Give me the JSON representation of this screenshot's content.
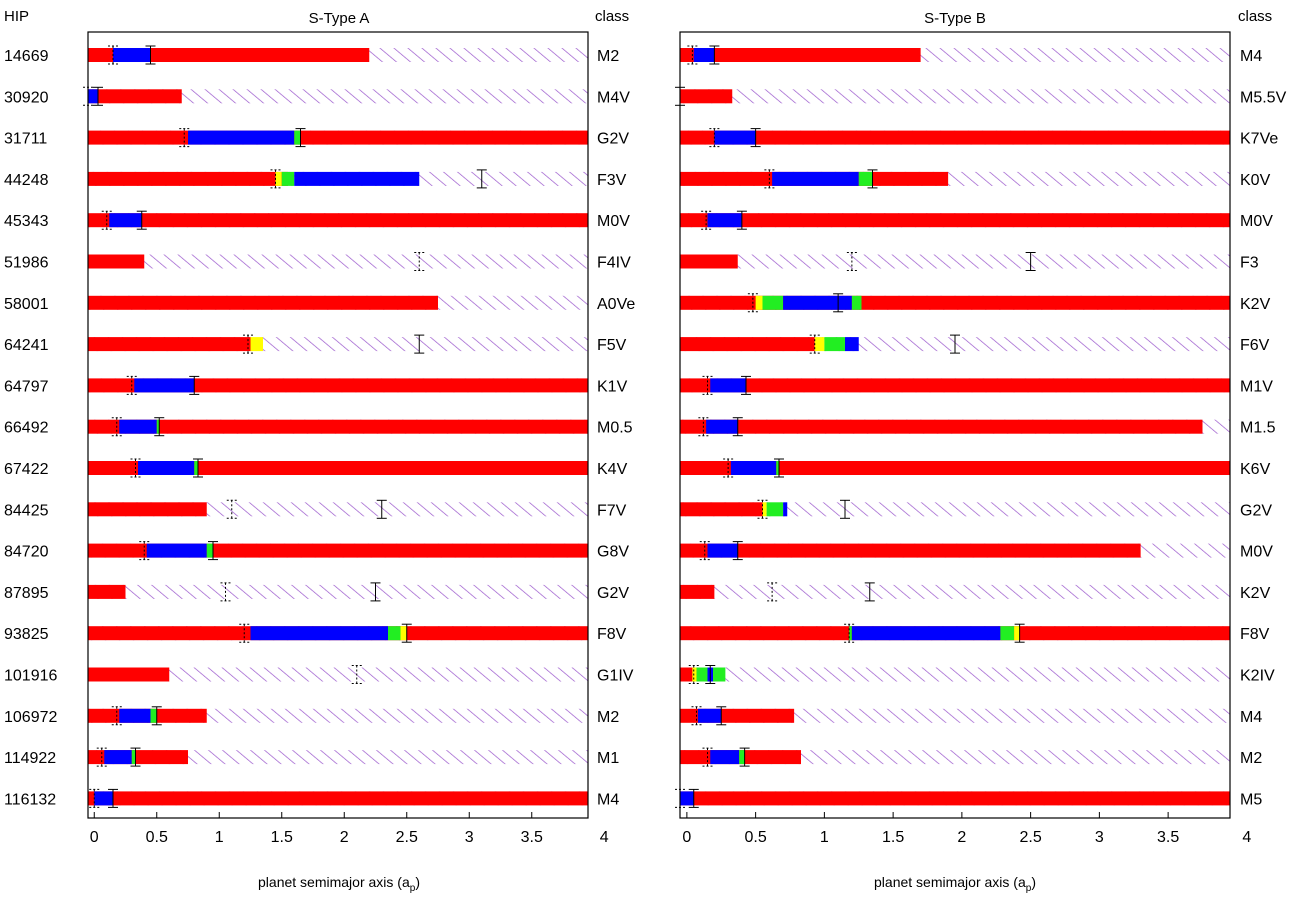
{
  "labels": {
    "hip_header": "HIP",
    "class_header": "class",
    "xlabel_main": "planet semimajor axis (a",
    "xlabel_sub": "p",
    "xlabel_close": ")"
  },
  "colors": {
    "red": "#ff0000",
    "blue": "#0000ff",
    "green": "#22ee22",
    "yellow": "#ffff00",
    "hatch": "#9955cc",
    "axis": "#000000",
    "panel_border": "#440066"
  },
  "chart_data": [
    {
      "type": "bar",
      "title": "S-Type A",
      "xlabel": "planet semimajor axis (ap)",
      "xlim": [
        -0.05,
        3.95
      ],
      "xticks": [
        0,
        0.5,
        1,
        1.5,
        2,
        2.5,
        3,
        3.5,
        4
      ],
      "xtick_labels": [
        "0",
        "0.5",
        "1",
        "1.5",
        "2",
        "2.5",
        "3",
        "3.5",
        "4"
      ],
      "rows": [
        {
          "hip": "14669",
          "class": "M2",
          "red_end": 2.2,
          "segments": [
            {
              "color": "blue",
              "from": 0.15,
              "to": 0.45
            }
          ],
          "solid_markers": [
            0.45
          ],
          "dotted_markers": [
            0.15
          ]
        },
        {
          "hip": "30920",
          "class": "M4V",
          "red_end": 0.7,
          "segments": [
            {
              "color": "blue",
              "from": -0.05,
              "to": 0.03
            }
          ],
          "solid_markers": [
            0.03
          ],
          "dotted_markers": [
            -0.05
          ]
        },
        {
          "hip": "31711",
          "class": "G2V",
          "red_end": 3.95,
          "segments": [
            {
              "color": "blue",
              "from": 0.75,
              "to": 1.6
            },
            {
              "color": "green",
              "from": 1.6,
              "to": 1.65
            }
          ],
          "solid_markers": [
            1.65
          ],
          "dotted_markers": [
            0.72
          ]
        },
        {
          "hip": "44248",
          "class": "F3V",
          "red_end": 1.55,
          "segments": [
            {
              "color": "yellow",
              "from": 1.45,
              "to": 1.5
            },
            {
              "color": "green",
              "from": 1.5,
              "to": 1.6
            },
            {
              "color": "blue",
              "from": 1.6,
              "to": 2.6
            }
          ],
          "solid_markers": [
            3.1
          ],
          "dotted_markers": [
            1.45
          ]
        },
        {
          "hip": "45343",
          "class": "M0V",
          "red_end": 3.95,
          "segments": [
            {
              "color": "blue",
              "from": 0.12,
              "to": 0.38
            }
          ],
          "solid_markers": [
            0.38
          ],
          "dotted_markers": [
            0.1
          ]
        },
        {
          "hip": "51986",
          "class": "F4IV",
          "red_end": 0.4,
          "segments": [],
          "solid_markers": [],
          "dotted_markers": [
            2.6
          ]
        },
        {
          "hip": "58001",
          "class": "A0Ve",
          "red_end": 2.75,
          "segments": [],
          "solid_markers": [],
          "dotted_markers": []
        },
        {
          "hip": "64241",
          "class": "F5V",
          "red_end": 1.25,
          "segments": [
            {
              "color": "yellow",
              "from": 1.25,
              "to": 1.35
            }
          ],
          "solid_markers": [
            2.6
          ],
          "dotted_markers": [
            1.23
          ]
        },
        {
          "hip": "64797",
          "class": "K1V",
          "red_end": 3.95,
          "segments": [
            {
              "color": "blue",
              "from": 0.32,
              "to": 0.8
            }
          ],
          "solid_markers": [
            0.8
          ],
          "dotted_markers": [
            0.3
          ]
        },
        {
          "hip": "66492",
          "class": "M0.5",
          "red_end": 3.95,
          "segments": [
            {
              "color": "blue",
              "from": 0.2,
              "to": 0.5
            },
            {
              "color": "green",
              "from": 0.5,
              "to": 0.52
            }
          ],
          "solid_markers": [
            0.52
          ],
          "dotted_markers": [
            0.18
          ]
        },
        {
          "hip": "67422",
          "class": "K4V",
          "red_end": 3.95,
          "segments": [
            {
              "color": "blue",
              "from": 0.35,
              "to": 0.8
            },
            {
              "color": "green",
              "from": 0.8,
              "to": 0.83
            }
          ],
          "solid_markers": [
            0.83
          ],
          "dotted_markers": [
            0.33
          ]
        },
        {
          "hip": "84425",
          "class": "F7V",
          "red_end": 0.9,
          "segments": [],
          "solid_markers": [
            2.3
          ],
          "dotted_markers": [
            1.1
          ]
        },
        {
          "hip": "84720",
          "class": "G8V",
          "red_end": 3.95,
          "segments": [
            {
              "color": "blue",
              "from": 0.42,
              "to": 0.9
            },
            {
              "color": "green",
              "from": 0.9,
              "to": 0.95
            }
          ],
          "solid_markers": [
            0.95
          ],
          "dotted_markers": [
            0.4
          ]
        },
        {
          "hip": "87895",
          "class": "G2V",
          "red_end": 0.25,
          "segments": [],
          "solid_markers": [
            2.25
          ],
          "dotted_markers": [
            1.05
          ]
        },
        {
          "hip": "93825",
          "class": "F8V",
          "red_end": 3.95,
          "segments": [
            {
              "color": "blue",
              "from": 1.25,
              "to": 2.35
            },
            {
              "color": "green",
              "from": 2.35,
              "to": 2.45
            },
            {
              "color": "yellow",
              "from": 2.45,
              "to": 2.5
            }
          ],
          "solid_markers": [
            2.5
          ],
          "dotted_markers": [
            1.2
          ]
        },
        {
          "hip": "101916",
          "class": "G1IV",
          "red_end": 0.6,
          "segments": [],
          "solid_markers": [],
          "dotted_markers": [
            2.1
          ]
        },
        {
          "hip": "106972",
          "class": "M2",
          "red_end": 0.9,
          "segments": [
            {
              "color": "blue",
              "from": 0.2,
              "to": 0.45
            },
            {
              "color": "green",
              "from": 0.45,
              "to": 0.5
            }
          ],
          "solid_markers": [
            0.5
          ],
          "dotted_markers": [
            0.18
          ]
        },
        {
          "hip": "114922",
          "class": "M1",
          "red_end": 0.75,
          "segments": [
            {
              "color": "blue",
              "from": 0.08,
              "to": 0.3
            },
            {
              "color": "green",
              "from": 0.3,
              "to": 0.33
            }
          ],
          "solid_markers": [
            0.33
          ],
          "dotted_markers": [
            0.06
          ]
        },
        {
          "hip": "116132",
          "class": "M4",
          "red_end": 3.95,
          "segments": [
            {
              "color": "blue",
              "from": 0.0,
              "to": 0.15
            }
          ],
          "solid_markers": [
            0.15
          ],
          "dotted_markers": [
            0.0
          ]
        }
      ]
    },
    {
      "type": "bar",
      "title": "S-Type B",
      "xlabel": "planet semimajor axis (ap)",
      "xlim": [
        -0.05,
        3.95
      ],
      "xticks": [
        0,
        0.5,
        1,
        1.5,
        2,
        2.5,
        3,
        3.5,
        4
      ],
      "xtick_labels": [
        "0",
        "0.5",
        "1",
        "1.5",
        "2",
        "2.5",
        "3",
        "3.5",
        "4"
      ],
      "rows": [
        {
          "hip": "14669",
          "class": "M4",
          "red_end": 1.7,
          "segments": [
            {
              "color": "blue",
              "from": 0.05,
              "to": 0.2
            }
          ],
          "solid_markers": [
            0.2
          ],
          "dotted_markers": [
            0.04
          ]
        },
        {
          "hip": "30920",
          "class": "M5.5V",
          "red_end": 0.33,
          "segments": [],
          "solid_markers": [
            -0.05
          ],
          "dotted_markers": []
        },
        {
          "hip": "31711",
          "class": "K7Ve",
          "red_end": 3.95,
          "segments": [
            {
              "color": "blue",
              "from": 0.2,
              "to": 0.5
            }
          ],
          "solid_markers": [
            0.5
          ],
          "dotted_markers": [
            0.2
          ]
        },
        {
          "hip": "44248",
          "class": "K0V",
          "red_end": 1.9,
          "segments": [
            {
              "color": "blue",
              "from": 0.62,
              "to": 1.25
            },
            {
              "color": "green",
              "from": 1.25,
              "to": 1.35
            }
          ],
          "solid_markers": [
            1.35
          ],
          "dotted_markers": [
            0.6
          ]
        },
        {
          "hip": "45343",
          "class": "M0V",
          "red_end": 3.95,
          "segments": [
            {
              "color": "blue",
              "from": 0.15,
              "to": 0.4
            }
          ],
          "solid_markers": [
            0.4
          ],
          "dotted_markers": [
            0.14
          ]
        },
        {
          "hip": "51986",
          "class": "F3",
          "red_end": 0.37,
          "segments": [],
          "solid_markers": [
            2.5
          ],
          "dotted_markers": [
            1.2
          ]
        },
        {
          "hip": "58001",
          "class": "K2V",
          "red_end": 3.95,
          "segments": [
            {
              "color": "yellow",
              "from": 0.5,
              "to": 0.55
            },
            {
              "color": "green",
              "from": 0.55,
              "to": 0.7
            },
            {
              "color": "blue",
              "from": 0.7,
              "to": 1.2
            },
            {
              "color": "green",
              "from": 1.2,
              "to": 1.27
            }
          ],
          "solid_markers": [
            1.1
          ],
          "dotted_markers": [
            0.48
          ]
        },
        {
          "hip": "64241",
          "class": "F6V",
          "red_end": 0.93,
          "segments": [
            {
              "color": "yellow",
              "from": 0.93,
              "to": 1.0
            },
            {
              "color": "green",
              "from": 1.0,
              "to": 1.15
            },
            {
              "color": "blue",
              "from": 1.15,
              "to": 1.25
            }
          ],
          "solid_markers": [
            1.95
          ],
          "dotted_markers": [
            0.93
          ]
        },
        {
          "hip": "64797",
          "class": "M1V",
          "red_end": 3.95,
          "segments": [
            {
              "color": "blue",
              "from": 0.17,
              "to": 0.43
            }
          ],
          "solid_markers": [
            0.43
          ],
          "dotted_markers": [
            0.15
          ]
        },
        {
          "hip": "66492",
          "class": "M1.5",
          "red_end": 3.75,
          "segments": [
            {
              "color": "blue",
              "from": 0.14,
              "to": 0.37
            }
          ],
          "solid_markers": [
            0.37
          ],
          "dotted_markers": [
            0.12
          ]
        },
        {
          "hip": "67422",
          "class": "K6V",
          "red_end": 3.95,
          "segments": [
            {
              "color": "blue",
              "from": 0.32,
              "to": 0.65
            },
            {
              "color": "green",
              "from": 0.65,
              "to": 0.67
            }
          ],
          "solid_markers": [
            0.67
          ],
          "dotted_markers": [
            0.3
          ]
        },
        {
          "hip": "84425",
          "class": "G2V",
          "red_end": 0.55,
          "segments": [
            {
              "color": "yellow",
              "from": 0.55,
              "to": 0.58
            },
            {
              "color": "green",
              "from": 0.58,
              "to": 0.7
            },
            {
              "color": "blue",
              "from": 0.7,
              "to": 0.73
            }
          ],
          "solid_markers": [
            1.15
          ],
          "dotted_markers": [
            0.55
          ]
        },
        {
          "hip": "84720",
          "class": "M0V",
          "red_end": 3.3,
          "segments": [
            {
              "color": "blue",
              "from": 0.15,
              "to": 0.37
            }
          ],
          "solid_markers": [
            0.37
          ],
          "dotted_markers": [
            0.13
          ]
        },
        {
          "hip": "87895",
          "class": "K2V",
          "red_end": 0.2,
          "segments": [],
          "solid_markers": [
            1.33
          ],
          "dotted_markers": [
            0.62
          ]
        },
        {
          "hip": "93825",
          "class": "F8V",
          "red_end": 3.95,
          "segments": [
            {
              "color": "green",
              "from": 1.18,
              "to": 1.2
            },
            {
              "color": "blue",
              "from": 1.2,
              "to": 2.28
            },
            {
              "color": "green",
              "from": 2.28,
              "to": 2.38
            },
            {
              "color": "yellow",
              "from": 2.38,
              "to": 2.42
            }
          ],
          "solid_markers": [
            2.42
          ],
          "dotted_markers": [
            1.18
          ]
        },
        {
          "hip": "101916",
          "class": "K2IV",
          "red_end": 0.05,
          "segments": [
            {
              "color": "yellow",
              "from": 0.04,
              "to": 0.07
            },
            {
              "color": "green",
              "from": 0.07,
              "to": 0.15
            },
            {
              "color": "blue",
              "from": 0.15,
              "to": 0.19
            },
            {
              "color": "green",
              "from": 0.19,
              "to": 0.28
            }
          ],
          "solid_markers": [
            0.17
          ],
          "dotted_markers": [
            0.05
          ]
        },
        {
          "hip": "106972",
          "class": "M4",
          "red_end": 0.78,
          "segments": [
            {
              "color": "blue",
              "from": 0.08,
              "to": 0.25
            }
          ],
          "solid_markers": [
            0.25
          ],
          "dotted_markers": [
            0.07
          ]
        },
        {
          "hip": "114922",
          "class": "M2",
          "red_end": 0.83,
          "segments": [
            {
              "color": "blue",
              "from": 0.17,
              "to": 0.38
            },
            {
              "color": "green",
              "from": 0.38,
              "to": 0.42
            }
          ],
          "solid_markers": [
            0.42
          ],
          "dotted_markers": [
            0.15
          ]
        },
        {
          "hip": "116132",
          "class": "M5",
          "red_end": 3.95,
          "segments": [
            {
              "color": "blue",
              "from": -0.05,
              "to": 0.05
            }
          ],
          "solid_markers": [
            0.05
          ],
          "dotted_markers": [
            -0.05
          ]
        }
      ]
    }
  ]
}
